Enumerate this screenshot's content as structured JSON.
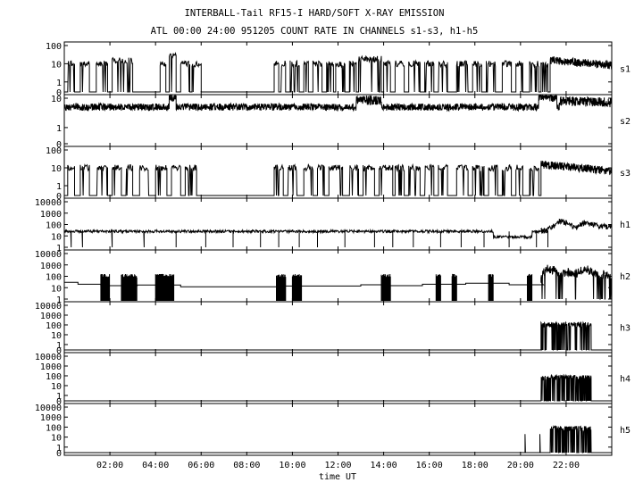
{
  "chart_data": {
    "type": "line",
    "title": "INTERBALL-Tail RF15-I HARD/SOFT X-RAY EMISSION",
    "subtitle": "ATL 00:00 24:00 951205  COUNT RATE IN CHANNELS s1-s3, h1-h5",
    "xlabel": "time UT",
    "xlim": [
      0,
      24
    ],
    "x_ticks": [
      "02:00",
      "04:00",
      "06:00",
      "08:00",
      "10:00",
      "12:00",
      "14:00",
      "16:00",
      "18:00",
      "20:00",
      "22:00"
    ],
    "x_tick_hours": [
      2,
      4,
      6,
      8,
      10,
      12,
      14,
      16,
      18,
      20,
      22
    ],
    "y_scale": "log",
    "grid": false,
    "legend": "none",
    "panels": [
      {
        "name": "s1",
        "y_ticks": [
          "100",
          "10",
          "1",
          "0"
        ],
        "bursts": [
          [
            0.15,
            0.45,
            10
          ],
          [
            0.7,
            1.1,
            10
          ],
          [
            1.4,
            1.9,
            10
          ],
          [
            2.1,
            3.0,
            15
          ],
          [
            4.2,
            4.45,
            10
          ],
          [
            4.6,
            4.9,
            30
          ],
          [
            5.1,
            5.5,
            10
          ],
          [
            5.6,
            6.0,
            10
          ],
          [
            9.2,
            9.4,
            10
          ],
          [
            9.5,
            9.7,
            10
          ],
          [
            9.9,
            10.3,
            10
          ],
          [
            10.5,
            10.7,
            10
          ],
          [
            10.9,
            11.3,
            10
          ],
          [
            11.5,
            11.8,
            10
          ],
          [
            11.9,
            12.3,
            10
          ],
          [
            12.5,
            12.8,
            10
          ],
          [
            12.9,
            13.9,
            18
          ],
          [
            14.0,
            14.3,
            10
          ],
          [
            14.5,
            14.9,
            10
          ],
          [
            15.1,
            15.6,
            10
          ],
          [
            15.8,
            16.2,
            10
          ],
          [
            16.4,
            16.8,
            10
          ],
          [
            17.2,
            17.7,
            10
          ],
          [
            17.9,
            18.3,
            10
          ],
          [
            18.5,
            18.9,
            10
          ],
          [
            19.2,
            19.6,
            10
          ],
          [
            19.8,
            20.1,
            10
          ],
          [
            20.4,
            20.8,
            10
          ],
          [
            20.9,
            21.2,
            10
          ]
        ],
        "continuous": {
          "start": 21.3,
          "end": 24,
          "start_value": 15,
          "end_value": 8
        }
      },
      {
        "name": "s2",
        "y_ticks": [
          "10",
          "1",
          "0"
        ],
        "baseline": 5,
        "enhancements": [
          [
            4.6,
            4.9,
            12
          ],
          [
            12.8,
            13.9,
            9
          ],
          [
            20.8,
            21.6,
            12
          ],
          [
            21.7,
            24,
            8
          ]
        ]
      },
      {
        "name": "s3",
        "y_ticks": [
          "100",
          "10",
          "1",
          "0"
        ],
        "bursts": [
          [
            0.15,
            0.45,
            10
          ],
          [
            0.7,
            1.1,
            10
          ],
          [
            1.4,
            1.9,
            10
          ],
          [
            2.1,
            2.5,
            10
          ],
          [
            2.7,
            3.0,
            10
          ],
          [
            3.3,
            3.7,
            10
          ],
          [
            4.0,
            4.5,
            10
          ],
          [
            4.7,
            5.1,
            10
          ],
          [
            5.3,
            5.8,
            10
          ],
          [
            9.2,
            9.6,
            10
          ],
          [
            9.8,
            10.2,
            10
          ],
          [
            10.5,
            10.9,
            10
          ],
          [
            11.1,
            11.4,
            10
          ],
          [
            11.6,
            12.2,
            10
          ],
          [
            12.5,
            12.9,
            10
          ],
          [
            13.1,
            13.6,
            10
          ],
          [
            13.8,
            14.4,
            10
          ],
          [
            14.5,
            14.9,
            10
          ],
          [
            15.1,
            15.6,
            10
          ],
          [
            15.8,
            16.2,
            10
          ],
          [
            16.4,
            16.8,
            10
          ],
          [
            17.2,
            17.7,
            10
          ],
          [
            17.9,
            18.4,
            10
          ],
          [
            18.6,
            19.0,
            10
          ],
          [
            19.2,
            19.6,
            10
          ],
          [
            19.8,
            20.1,
            10
          ],
          [
            20.4,
            20.8,
            10
          ]
        ],
        "continuous": {
          "start": 20.9,
          "end": 24,
          "start_value": 15,
          "end_value": 6
        }
      },
      {
        "name": "h1",
        "y_ticks": [
          "10000",
          "1000",
          "100",
          "10",
          "1"
        ],
        "baseline": 25,
        "low_segment": [
          18.8,
          20.5,
          8
        ],
        "dropouts": [
          0.3,
          0.8,
          2.1,
          3.5,
          4.9,
          6.2,
          7.4,
          8.6,
          9.4,
          10.3,
          11.1,
          12.3,
          13.6,
          14.4,
          15.3,
          16.5,
          17.4,
          18.4,
          19.5,
          20.7,
          21.2
        ],
        "event": [
          [
            20.9,
            25
          ],
          [
            21.2,
            40
          ],
          [
            21.5,
            80
          ],
          [
            21.7,
            200
          ],
          [
            22.0,
            150
          ],
          [
            22.3,
            60
          ],
          [
            22.5,
            50
          ],
          [
            22.8,
            150
          ],
          [
            23.1,
            100
          ],
          [
            23.5,
            70
          ],
          [
            24.0,
            60
          ]
        ]
      },
      {
        "name": "h2",
        "y_ticks": [
          "10000",
          "1000",
          "100",
          "10",
          "1"
        ],
        "levels": [
          [
            0,
            0.6,
            30
          ],
          [
            0.6,
            1.6,
            20
          ],
          [
            1.6,
            3.2,
            15
          ],
          [
            3.2,
            5.1,
            17
          ],
          [
            5.1,
            6.5,
            12
          ],
          [
            6.5,
            9.5,
            12
          ],
          [
            9.5,
            13.0,
            14
          ],
          [
            13.0,
            14.0,
            18
          ],
          [
            14.0,
            15.7,
            15
          ],
          [
            15.7,
            17.6,
            20
          ],
          [
            17.6,
            19.5,
            25
          ],
          [
            19.5,
            21.0,
            18
          ]
        ],
        "burst_groups": [
          [
            1.6,
            2.0
          ],
          [
            2.5,
            3.2
          ],
          [
            4.0,
            4.8
          ],
          [
            9.3,
            9.7
          ],
          [
            10.0,
            10.4
          ],
          [
            13.9,
            14.3
          ],
          [
            16.3,
            16.5
          ],
          [
            17.0,
            17.2
          ],
          [
            18.6,
            18.8
          ],
          [
            20.3,
            20.5
          ]
        ],
        "event": [
          [
            20.9,
            30
          ],
          [
            21.2,
            500
          ],
          [
            21.5,
            300
          ],
          [
            21.8,
            80
          ],
          [
            22.0,
            250
          ],
          [
            22.5,
            200
          ],
          [
            22.9,
            400
          ],
          [
            23.2,
            200
          ],
          [
            23.5,
            150
          ],
          [
            24.0,
            80
          ]
        ]
      },
      {
        "name": "h3",
        "y_ticks": [
          "10000",
          "1000",
          "100",
          "10",
          "1",
          "0"
        ],
        "event_window": [
          20.9,
          23.1
        ],
        "peak": 150
      },
      {
        "name": "h4",
        "y_ticks": [
          "10000",
          "1000",
          "100",
          "10",
          "1",
          "0"
        ],
        "event_window": [
          20.9,
          23.1
        ],
        "peak": 100
      },
      {
        "name": "h5",
        "y_ticks": [
          "10000",
          "1000",
          "100",
          "10",
          "1",
          "0"
        ],
        "spikes": [
          20.2,
          20.85
        ],
        "event_window": [
          21.3,
          23.1
        ],
        "peak": 100
      }
    ]
  }
}
